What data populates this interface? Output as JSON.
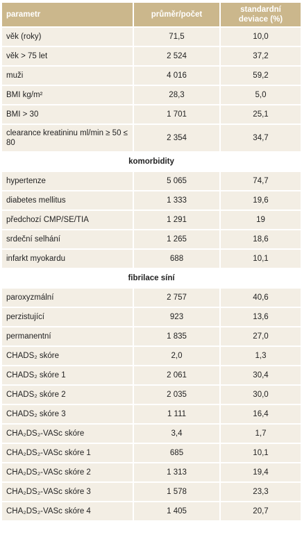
{
  "table": {
    "header": [
      "parametr",
      "průměr/počet",
      "standardní deviace (%)"
    ],
    "rows": [
      [
        "věk (roky)",
        "71,5",
        "10,0"
      ],
      [
        "věk > 75 let",
        "2 524",
        "37,2"
      ],
      [
        "muži",
        "4 016",
        "59,2"
      ],
      [
        "BMI kg/m²",
        "28,3",
        "5,0"
      ],
      [
        "BMI > 30",
        "1 701",
        "25,1"
      ],
      [
        "clearance kreatininu ml/min ≥ 50 ≤ 80",
        "2 354",
        "34,7"
      ],
      [
        "komorbidity"
      ],
      [
        "hypertenze",
        "5 065",
        "74,7"
      ],
      [
        "diabetes mellitus",
        "1 333",
        "19,6"
      ],
      [
        "předchozí CMP/SE/TIA",
        "1 291",
        "19"
      ],
      [
        "srdeční selhání",
        "1 265",
        "18,6"
      ],
      [
        "infarkt myokardu",
        "688",
        "10,1"
      ],
      [
        "fibrilace síní"
      ],
      [
        "paroxyzmální",
        "2 757",
        "40,6"
      ],
      [
        "perzistující",
        "923",
        "13,6"
      ],
      [
        "permanentní",
        "1 835",
        "27,0"
      ],
      [
        "CHADS₂ skóre",
        "2,0",
        "1,3"
      ],
      [
        "CHADS₂ skóre 1",
        "2 061",
        "30,4"
      ],
      [
        "CHADS₂ skóre 2",
        "2 035",
        "30,0"
      ],
      [
        "CHADS₂ skóre 3",
        "1 111",
        "16,4"
      ],
      [
        "CHA₂DS₂-VASc skóre",
        "3,4",
        "1,7"
      ],
      [
        "CHA₂DS₂-VASc skóre 1",
        "685",
        "10,1"
      ],
      [
        "CHA₂DS₂-VASc skóre 2",
        "1 313",
        "19,4"
      ],
      [
        "CHA₂DS₂-VASc skóre 3",
        "1 578",
        "23,3"
      ],
      [
        "CHA₂DS₂-VASc skóre 4",
        "1 405",
        "20,7"
      ]
    ]
  }
}
